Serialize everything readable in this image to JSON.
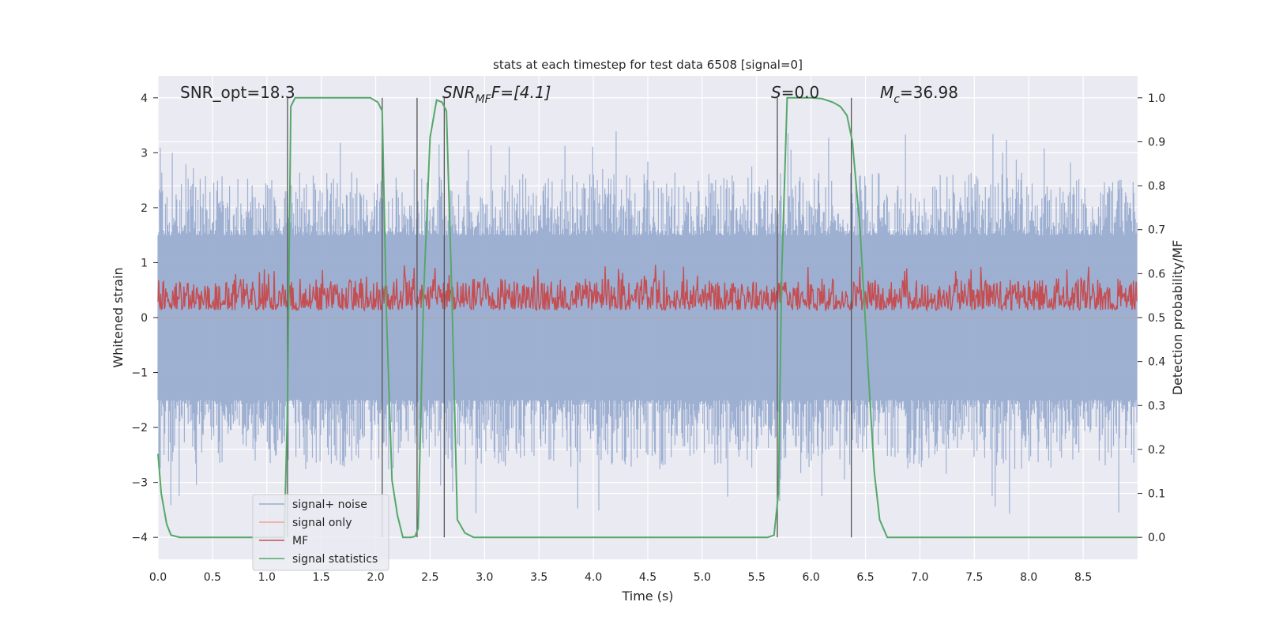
{
  "chart_data": {
    "type": "line",
    "title": "stats at each timestep for test data 6508 [signal=0]",
    "xlabel": "Time (s)",
    "ylabel_left": "Whitened strain",
    "ylabel_right": "Detection probability/MF",
    "xlim": [
      0.0,
      9.0
    ],
    "ylim_left": [
      -4.4,
      4.4
    ],
    "ylim_right": [
      -0.05,
      1.05
    ],
    "xticks": [
      0.0,
      0.5,
      1.0,
      1.5,
      2.0,
      2.5,
      3.0,
      3.5,
      4.0,
      4.5,
      5.0,
      5.5,
      6.0,
      6.5,
      7.0,
      7.5,
      8.0,
      8.5
    ],
    "xtick_labels": [
      "0.0",
      "0.5",
      "1.0",
      "1.5",
      "2.0",
      "2.5",
      "3.0",
      "3.5",
      "4.0",
      "4.5",
      "5.0",
      "5.5",
      "6.0",
      "6.5",
      "7.0",
      "7.5",
      "8.0",
      "8.5"
    ],
    "yticks_left": [
      -4,
      -3,
      -2,
      -1,
      0,
      1,
      2,
      3,
      4
    ],
    "ytick_labels_left": [
      "−4",
      "−3",
      "−2",
      "−1",
      "0",
      "1",
      "2",
      "3",
      "4"
    ],
    "yticks_right": [
      0.0,
      0.1,
      0.2,
      0.3,
      0.4,
      0.5,
      0.6,
      0.7,
      0.8,
      0.9,
      1.0
    ],
    "ytick_labels_right": [
      "0.0",
      "0.1",
      "0.2",
      "0.3",
      "0.4",
      "0.5",
      "0.6",
      "0.7",
      "0.8",
      "0.9",
      "1.0"
    ],
    "annotations": {
      "snr_opt": "SNR_opt=18.3",
      "snr_mf_label": "SNR",
      "snr_mf_sub": "MF",
      "snr_mf_value": "F=[4.1]",
      "s_label": "S",
      "s_value": "=0.0",
      "mc_label": "M",
      "mc_sub": "c",
      "mc_value": "=36.98"
    },
    "vertical_lines_x": [
      1.19,
      2.06,
      2.38,
      2.63,
      5.69,
      6.37
    ],
    "series": [
      {
        "name": "signal+ noise",
        "color": "#9aadd0",
        "axis": "left",
        "kind": "noise",
        "envelope_pos": [
          1.5,
          3.4
        ],
        "envelope_neg": [
          -1.5,
          -3.6
        ]
      },
      {
        "name": "signal only",
        "color": "#f1a589",
        "axis": "left",
        "kind": "flat",
        "value": 0.0
      },
      {
        "name": "MF",
        "color": "#c44e52",
        "axis": "right",
        "kind": "noise",
        "range": [
          0.505,
          0.62
        ]
      },
      {
        "name": "signal statistics",
        "color": "#55a868",
        "axis": "right",
        "kind": "line",
        "x": [
          0.0,
          0.03,
          0.08,
          0.12,
          0.2,
          1.0,
          1.16,
          1.19,
          1.22,
          1.26,
          1.4,
          1.95,
          2.02,
          2.06,
          2.1,
          2.15,
          2.2,
          2.25,
          2.32,
          2.36,
          2.39,
          2.44,
          2.5,
          2.56,
          2.61,
          2.65,
          2.7,
          2.75,
          2.82,
          2.9,
          3.2,
          5.6,
          5.66,
          5.7,
          5.73,
          5.78,
          6.0,
          6.1,
          6.2,
          6.27,
          6.33,
          6.38,
          6.45,
          6.52,
          6.58,
          6.63,
          6.7,
          6.8,
          9.0
        ],
        "y": [
          0.19,
          0.1,
          0.03,
          0.005,
          0.0,
          0.0,
          0.0,
          0.3,
          0.98,
          1.0,
          1.0,
          1.0,
          0.99,
          0.97,
          0.5,
          0.13,
          0.05,
          0.0,
          0.0,
          0.002,
          0.02,
          0.55,
          0.91,
          0.995,
          0.99,
          0.97,
          0.55,
          0.04,
          0.01,
          0.0,
          0.0,
          0.0,
          0.005,
          0.1,
          0.6,
          1.0,
          1.0,
          0.998,
          0.99,
          0.98,
          0.96,
          0.9,
          0.7,
          0.4,
          0.15,
          0.04,
          0.0,
          0.0,
          0.0
        ]
      }
    ],
    "legend": {
      "placement": "lower-left",
      "entries": [
        "signal+ noise",
        "signal only",
        "MF",
        "signal statistics"
      ]
    }
  }
}
